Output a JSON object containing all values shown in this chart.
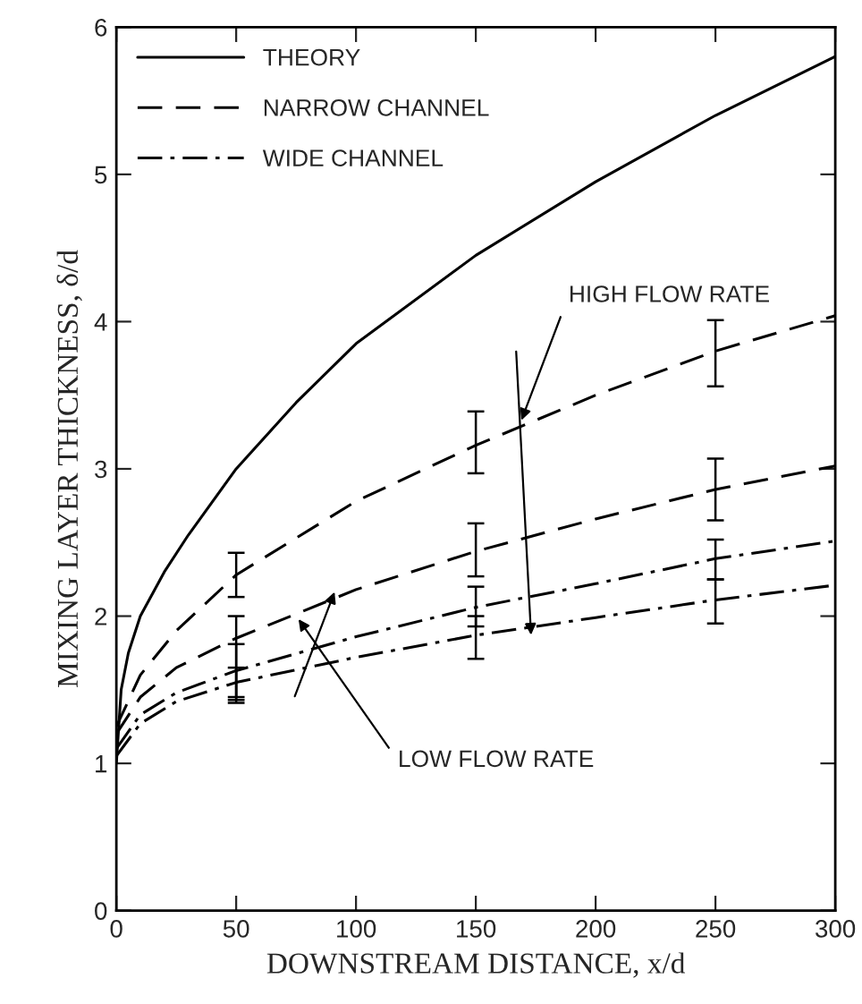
{
  "chart_data": {
    "type": "line",
    "xlabel": "DOWNSTREAM DISTANCE, x/d",
    "ylabel": "MIXING LAYER THICKNESS, δ/d",
    "xlim": [
      0,
      300
    ],
    "ylim": [
      0,
      6
    ],
    "xticks": [
      0,
      50,
      100,
      150,
      200,
      250,
      300
    ],
    "yticks": [
      0,
      1,
      2,
      3,
      4,
      5,
      6
    ],
    "grid": false,
    "legend": "top left",
    "series": [
      {
        "name": "THEORY",
        "color": "#000000",
        "line_style": "solid",
        "x": [
          0,
          2,
          5,
          10,
          20,
          30,
          50,
          75,
          100,
          150,
          200,
          250,
          300
        ],
        "values": [
          1.0,
          1.5,
          1.75,
          2.0,
          2.3,
          2.55,
          3.0,
          3.45,
          3.85,
          4.45,
          4.95,
          5.4,
          5.8
        ]
      },
      {
        "name": "NARROW CHANNEL",
        "color": "#000000",
        "line_style": "dashed",
        "x": [
          0,
          10,
          25,
          50,
          100,
          150,
          200,
          250,
          300
        ],
        "values": [
          1.25,
          1.6,
          1.9,
          2.28,
          2.78,
          3.16,
          3.5,
          3.8,
          4.04
        ],
        "errors": [
          null,
          null,
          null,
          [
            2.13,
            2.43
          ],
          null,
          [
            2.97,
            3.39
          ],
          null,
          [
            3.56,
            4.01
          ],
          null
        ]
      },
      {
        "color": "#000000",
        "line_style": "dashed",
        "x": [
          0,
          10,
          25,
          50,
          100,
          150,
          200,
          250,
          300
        ],
        "values": [
          1.2,
          1.45,
          1.65,
          1.85,
          2.18,
          2.44,
          2.66,
          2.86,
          3.02
        ],
        "errors": [
          null,
          null,
          null,
          [
            1.45,
            2.0
          ],
          null,
          [
            2.27,
            2.63
          ],
          null,
          [
            2.65,
            3.07
          ],
          null
        ]
      },
      {
        "name": "WIDE CHANNEL",
        "color": "#000000",
        "line_style": "dashdot",
        "x": [
          0,
          10,
          25,
          50,
          100,
          150,
          200,
          250,
          300
        ],
        "values": [
          1.1,
          1.33,
          1.48,
          1.63,
          1.86,
          2.06,
          2.22,
          2.39,
          2.51
        ],
        "errors": [
          null,
          null,
          null,
          [
            1.41,
            1.81
          ],
          null,
          [
            1.93,
            2.2
          ],
          null,
          [
            2.25,
            2.52
          ],
          null
        ]
      },
      {
        "color": "#000000",
        "line_style": "dashdot",
        "x": [
          0,
          10,
          25,
          50,
          100,
          150,
          200,
          250,
          300
        ],
        "values": [
          1.05,
          1.27,
          1.42,
          1.55,
          1.72,
          1.87,
          1.99,
          2.11,
          2.21
        ],
        "errors": [
          null,
          null,
          null,
          [
            1.43,
            1.65
          ],
          null,
          [
            1.71,
            2.0
          ],
          null,
          [
            1.95,
            2.25
          ],
          null
        ]
      }
    ],
    "annotations": [
      {
        "text": "HIGH FLOW RATE",
        "x": 169,
        "y": 3.33
      },
      {
        "text": "LOW FLOW RATE",
        "x": 76,
        "y": 1.98
      }
    ]
  }
}
